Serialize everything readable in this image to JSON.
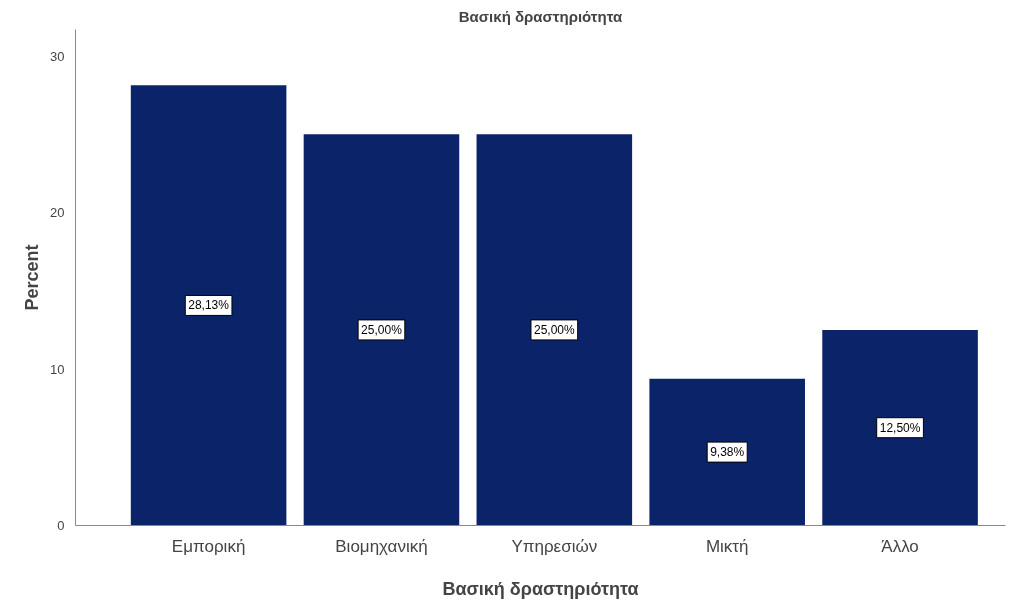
{
  "chart_data": {
    "type": "bar",
    "title": "Βασική δραστηριότητα",
    "xlabel": "Βασική δραστηριότητα",
    "ylabel": "Percent",
    "categories": [
      "Εμπορική",
      "Βιομηχανική",
      "Υπηρεσιών",
      "Μικτή",
      "Άλλο"
    ],
    "values": [
      28.13,
      25.0,
      25.0,
      9.38,
      12.5
    ],
    "value_labels": [
      "28,13%",
      "25,00%",
      "25,00%",
      "9,38%",
      "12,50%"
    ],
    "color": "#0b2469",
    "ylim": [
      0,
      31.7
    ],
    "yticks": [
      0,
      10,
      20,
      30
    ],
    "grid": false
  }
}
